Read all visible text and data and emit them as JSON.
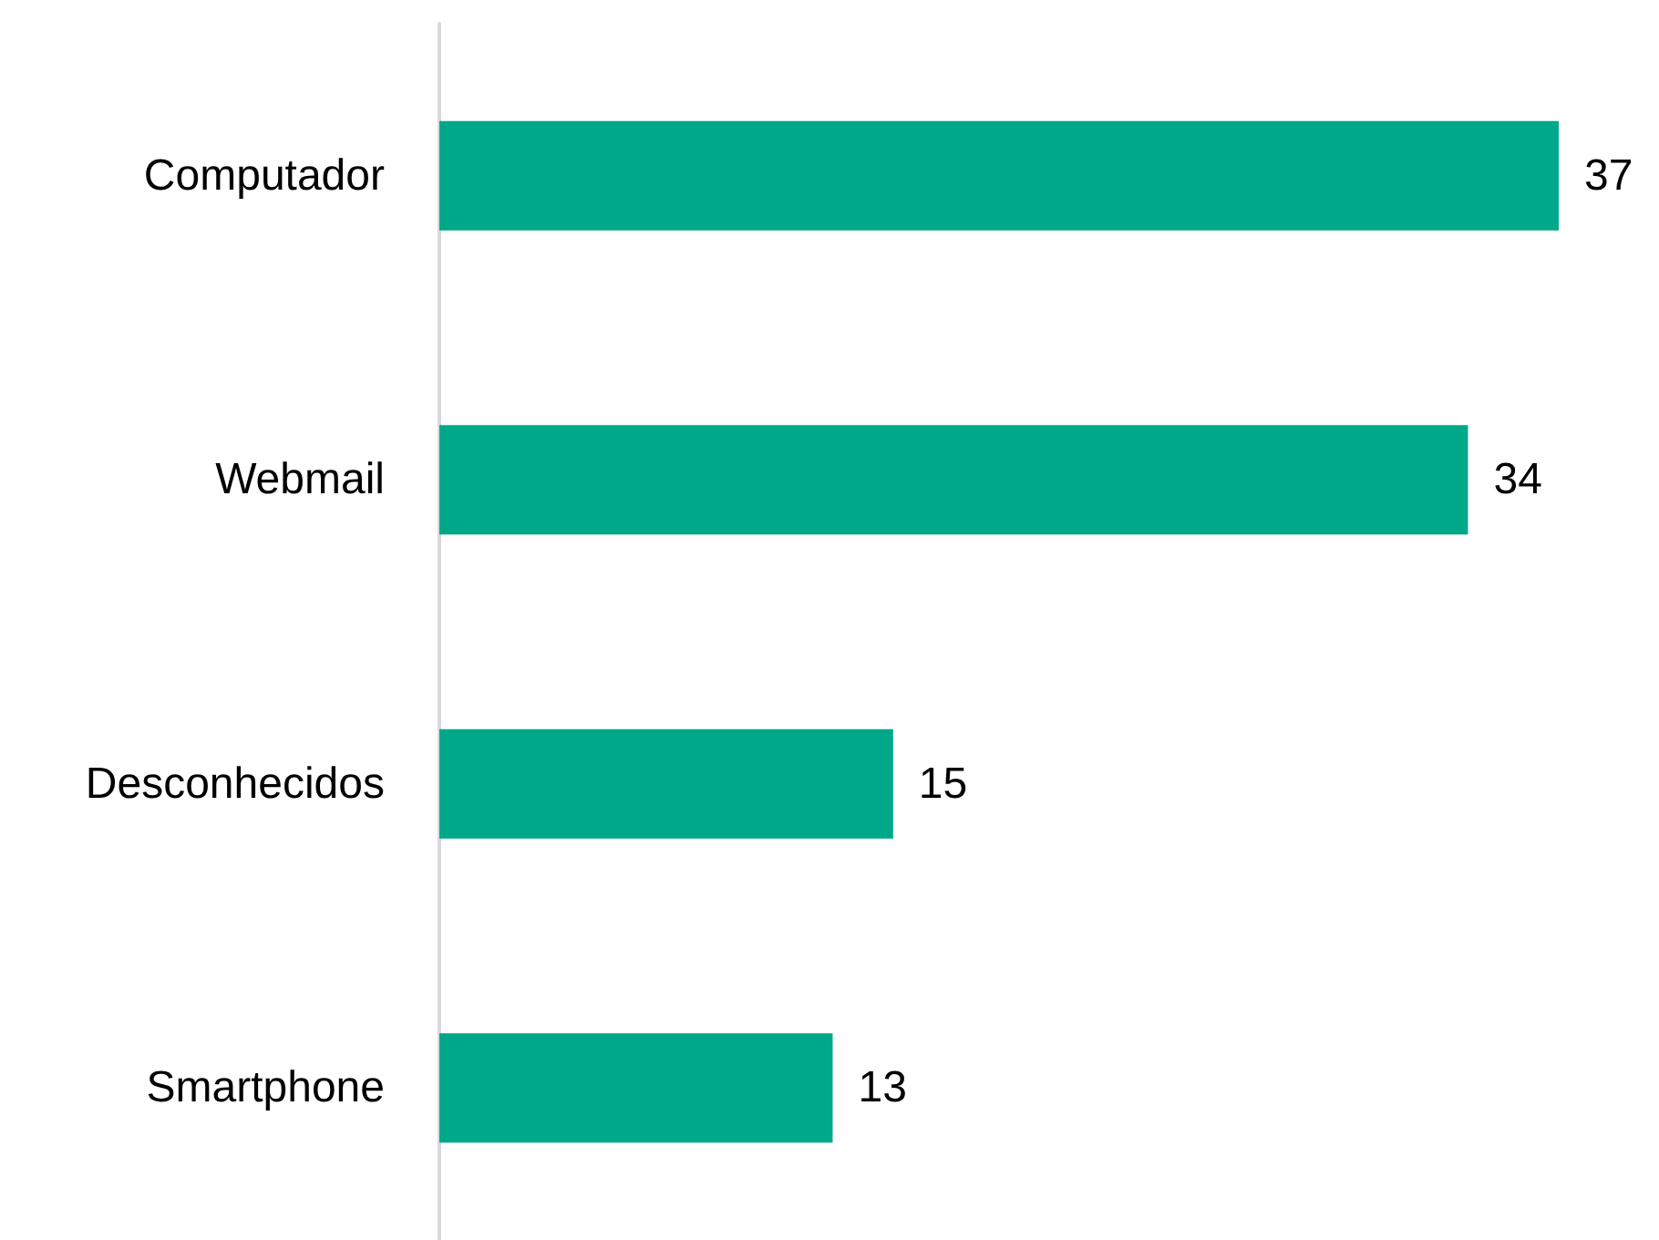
{
  "chart_data": {
    "type": "bar",
    "orientation": "horizontal",
    "categories": [
      "Computador",
      "Webmail",
      "Desconhecidos",
      "Smartphone"
    ],
    "values": [
      37,
      34,
      15,
      13
    ],
    "color": "#00a88a",
    "data_labels": true
  }
}
